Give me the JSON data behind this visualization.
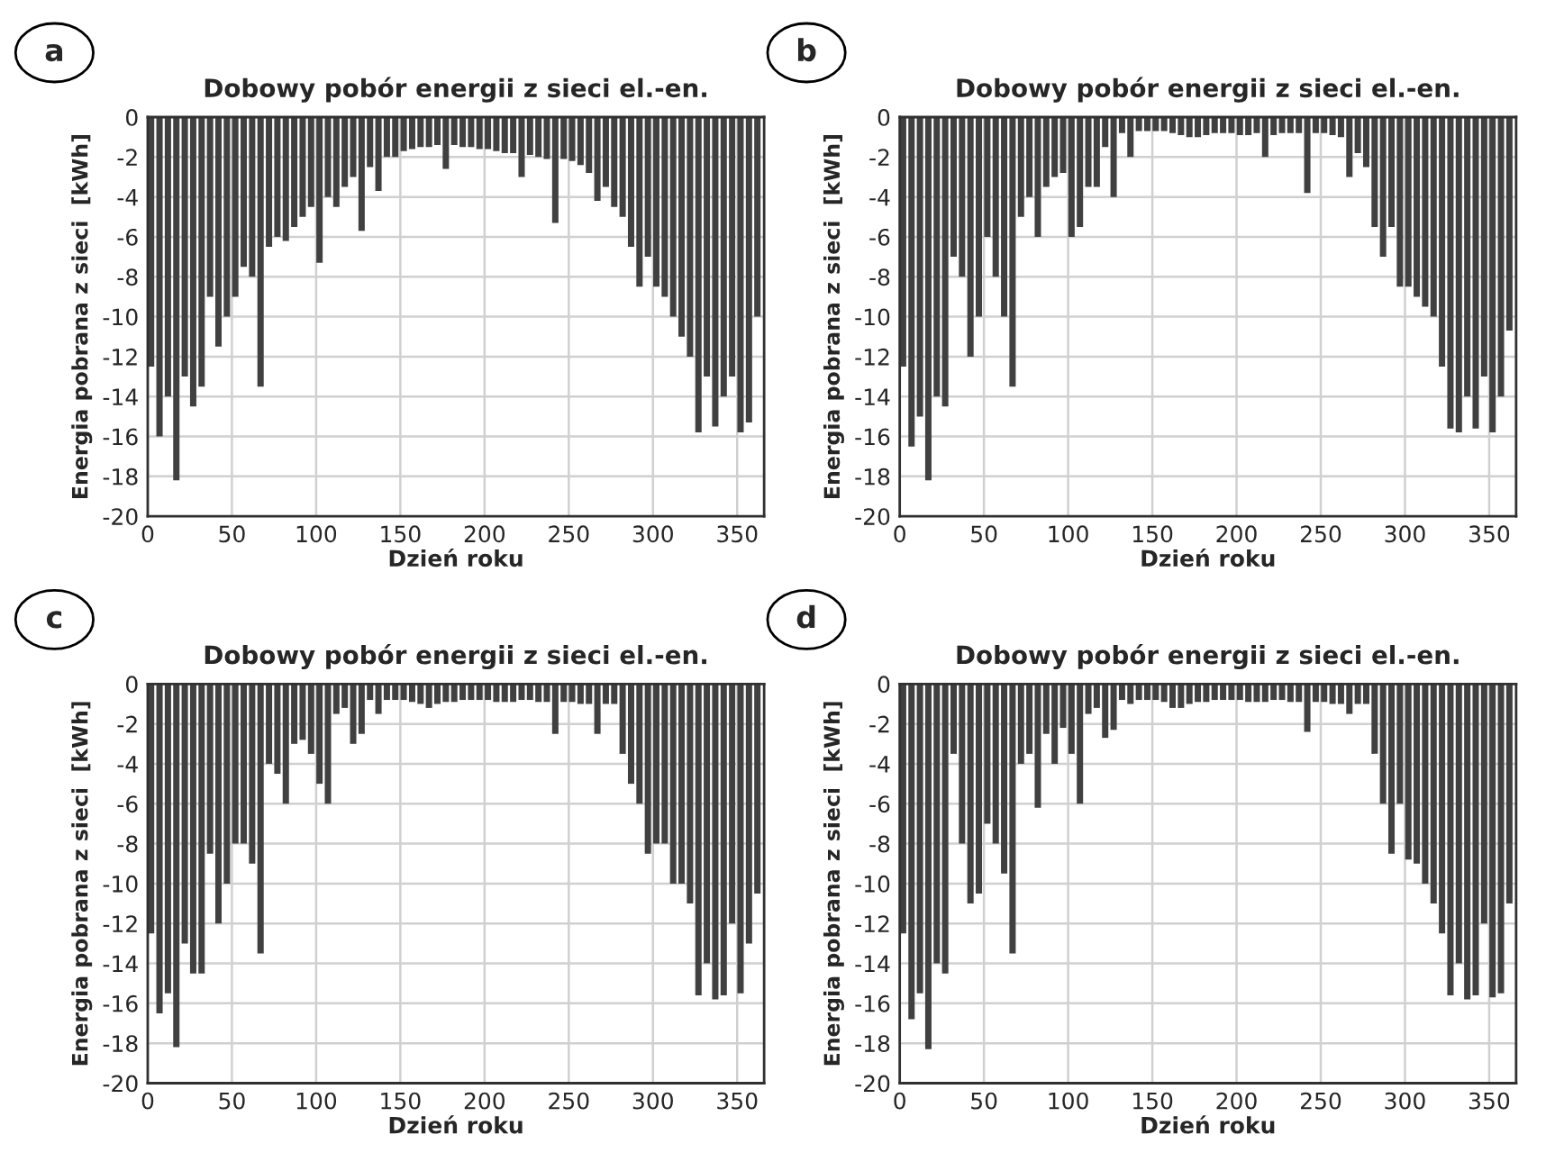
{
  "chart_data": [
    {
      "type": "bar",
      "title": "Dobowy pobór energii z sieci el.-en.",
      "xlabel": "Dzień roku",
      "ylabel": "Energia pobrana z sieci  [kWh]",
      "annotations": [
        "a"
      ],
      "x": [
        2,
        7,
        12,
        17,
        22,
        27,
        32,
        37,
        42,
        47,
        52,
        57,
        62,
        67,
        72,
        77,
        82,
        87,
        92,
        97,
        102,
        107,
        112,
        117,
        122,
        127,
        132,
        137,
        142,
        147,
        152,
        157,
        162,
        167,
        172,
        177,
        182,
        187,
        192,
        197,
        202,
        207,
        212,
        217,
        222,
        227,
        232,
        237,
        242,
        247,
        252,
        257,
        262,
        267,
        272,
        277,
        282,
        287,
        292,
        297,
        302,
        307,
        312,
        317,
        322,
        327,
        332,
        337,
        342,
        347,
        352,
        357,
        362
      ],
      "values": [
        -12.5,
        -16,
        -14,
        -18.2,
        -13,
        -14.5,
        -13.5,
        -9,
        -11.5,
        -10,
        -9,
        -7.5,
        -8,
        -13.5,
        -6.5,
        -6,
        -6.2,
        -5.5,
        -5,
        -4.5,
        -7.3,
        -4,
        -4.5,
        -3.5,
        -3,
        -5.7,
        -2.5,
        -3.7,
        -2,
        -2,
        -1.7,
        -1.6,
        -1.5,
        -1.5,
        -1.4,
        -2.6,
        -1.4,
        -1.5,
        -1.5,
        -1.6,
        -1.6,
        -1.7,
        -1.8,
        -1.8,
        -3,
        -1.9,
        -2,
        -2.1,
        -5.3,
        -2.1,
        -2.2,
        -2.4,
        -2.8,
        -4.2,
        -3.5,
        -4.5,
        -5,
        -6.5,
        -8.5,
        -7,
        -8.5,
        -9,
        -10,
        -11,
        -12,
        -15.8,
        -13,
        -15.5,
        -14,
        -13,
        -15.8,
        -15.3,
        -10
      ],
      "color": "#404040",
      "xlim": [
        0,
        366
      ],
      "xticks": [
        0,
        50,
        100,
        150,
        200,
        250,
        300,
        350
      ],
      "ylim": [
        -20,
        0
      ],
      "yticks": [
        -20,
        -18,
        -16,
        -14,
        -12,
        -10,
        -8,
        -6,
        -4,
        -2,
        0
      ],
      "grid": true
    },
    {
      "type": "bar",
      "title": "Dobowy pobór energii z sieci el.-en.",
      "xlabel": "Dzień roku",
      "ylabel": "Energia pobrana z sieci  [kWh]",
      "annotations": [
        "b"
      ],
      "x": [
        2,
        7,
        12,
        17,
        22,
        27,
        32,
        37,
        42,
        47,
        52,
        57,
        62,
        67,
        72,
        77,
        82,
        87,
        92,
        97,
        102,
        107,
        112,
        117,
        122,
        127,
        132,
        137,
        142,
        147,
        152,
        157,
        162,
        167,
        172,
        177,
        182,
        187,
        192,
        197,
        202,
        207,
        212,
        217,
        222,
        227,
        232,
        237,
        242,
        247,
        252,
        257,
        262,
        267,
        272,
        277,
        282,
        287,
        292,
        297,
        302,
        307,
        312,
        317,
        322,
        327,
        332,
        337,
        342,
        347,
        352,
        357,
        362
      ],
      "values": [
        -12.5,
        -16.5,
        -15,
        -18.2,
        -14,
        -14.5,
        -7,
        -8,
        -12,
        -10,
        -6,
        -8,
        -10,
        -13.5,
        -5,
        -4,
        -6,
        -3.5,
        -3,
        -2.8,
        -6,
        -5.5,
        -3.5,
        -3.5,
        -1.5,
        -4,
        -0.8,
        -2,
        -0.7,
        -0.7,
        -0.7,
        -0.7,
        -0.8,
        -0.9,
        -1,
        -1,
        -0.9,
        -0.8,
        -0.8,
        -0.8,
        -0.9,
        -0.9,
        -0.8,
        -2,
        -0.9,
        -0.8,
        -0.8,
        -0.8,
        -3.8,
        -0.8,
        -0.8,
        -0.9,
        -1,
        -3,
        -1.8,
        -2.5,
        -5.5,
        -7,
        -5.5,
        -8.5,
        -8.5,
        -9,
        -9.5,
        -10,
        -12.5,
        -15.6,
        -15.8,
        -14,
        -15.6,
        -13,
        -15.8,
        -14,
        -10.7
      ],
      "color": "#404040",
      "xlim": [
        0,
        366
      ],
      "xticks": [
        0,
        50,
        100,
        150,
        200,
        250,
        300,
        350
      ],
      "ylim": [
        -20,
        0
      ],
      "yticks": [
        -20,
        -18,
        -16,
        -14,
        -12,
        -10,
        -8,
        -6,
        -4,
        -2,
        0
      ],
      "grid": true
    },
    {
      "type": "bar",
      "title": "Dobowy pobór energii z sieci el.-en.",
      "xlabel": "Dzień roku",
      "ylabel": "Energia pobrana z sieci  [kWh]",
      "annotations": [
        "c"
      ],
      "x": [
        2,
        7,
        12,
        17,
        22,
        27,
        32,
        37,
        42,
        47,
        52,
        57,
        62,
        67,
        72,
        77,
        82,
        87,
        92,
        97,
        102,
        107,
        112,
        117,
        122,
        127,
        132,
        137,
        142,
        147,
        152,
        157,
        162,
        167,
        172,
        177,
        182,
        187,
        192,
        197,
        202,
        207,
        212,
        217,
        222,
        227,
        232,
        237,
        242,
        247,
        252,
        257,
        262,
        267,
        272,
        277,
        282,
        287,
        292,
        297,
        302,
        307,
        312,
        317,
        322,
        327,
        332,
        337,
        342,
        347,
        352,
        357,
        362
      ],
      "values": [
        -12.5,
        -16.5,
        -15.5,
        -18.2,
        -13,
        -14.5,
        -14.5,
        -8.5,
        -12,
        -10,
        -8,
        -8,
        -9,
        -13.5,
        -4,
        -4.5,
        -6,
        -3,
        -2.8,
        -3.5,
        -5,
        -6,
        -1.5,
        -1.2,
        -3,
        -2.5,
        -0.8,
        -1.5,
        -0.8,
        -0.8,
        -0.8,
        -0.9,
        -1,
        -1.2,
        -1,
        -0.9,
        -0.9,
        -0.8,
        -0.8,
        -0.8,
        -0.8,
        -0.9,
        -0.9,
        -0.9,
        -0.8,
        -0.8,
        -0.9,
        -0.9,
        -2.5,
        -0.9,
        -0.9,
        -1,
        -1,
        -2.5,
        -1,
        -1,
        -3.5,
        -5,
        -6,
        -8.5,
        -8,
        -8,
        -10,
        -10,
        -11,
        -15.6,
        -14,
        -15.8,
        -15.6,
        -12,
        -15.5,
        -13,
        -10.5
      ],
      "color": "#404040",
      "xlim": [
        0,
        366
      ],
      "xticks": [
        0,
        50,
        100,
        150,
        200,
        250,
        300,
        350
      ],
      "ylim": [
        -20,
        0
      ],
      "yticks": [
        -20,
        -18,
        -16,
        -14,
        -12,
        -10,
        -8,
        -6,
        -4,
        -2,
        0
      ],
      "grid": true
    },
    {
      "type": "bar",
      "title": "Dobowy pobór energii z sieci el.-en.",
      "xlabel": "Dzień roku",
      "ylabel": "Energia pobrana z sieci  [kWh]",
      "annotations": [
        "d"
      ],
      "x": [
        2,
        7,
        12,
        17,
        22,
        27,
        32,
        37,
        42,
        47,
        52,
        57,
        62,
        67,
        72,
        77,
        82,
        87,
        92,
        97,
        102,
        107,
        112,
        117,
        122,
        127,
        132,
        137,
        142,
        147,
        152,
        157,
        162,
        167,
        172,
        177,
        182,
        187,
        192,
        197,
        202,
        207,
        212,
        217,
        222,
        227,
        232,
        237,
        242,
        247,
        252,
        257,
        262,
        267,
        272,
        277,
        282,
        287,
        292,
        297,
        302,
        307,
        312,
        317,
        322,
        327,
        332,
        337,
        342,
        347,
        352,
        357,
        362
      ],
      "values": [
        -12.5,
        -16.8,
        -15.5,
        -18.3,
        -14,
        -14.5,
        -3.5,
        -8,
        -11,
        -10.5,
        -7,
        -8,
        -9.5,
        -13.5,
        -4,
        -3.5,
        -6.2,
        -2.5,
        -4,
        -2.2,
        -3.5,
        -6,
        -1.5,
        -1.2,
        -2.7,
        -2.3,
        -0.8,
        -1,
        -0.8,
        -0.8,
        -0.8,
        -0.9,
        -1.2,
        -1.2,
        -1,
        -0.9,
        -0.9,
        -0.8,
        -0.8,
        -0.8,
        -0.8,
        -0.9,
        -0.9,
        -0.9,
        -0.8,
        -0.8,
        -0.9,
        -0.9,
        -2.4,
        -0.9,
        -0.9,
        -1,
        -1,
        -1.5,
        -1,
        -1,
        -3.5,
        -6,
        -8.5,
        -6,
        -8.8,
        -9,
        -10,
        -11,
        -12.5,
        -15.6,
        -14,
        -15.8,
        -15.6,
        -12,
        -15.7,
        -15.5,
        -11
      ],
      "color": "#404040",
      "xlim": [
        0,
        366
      ],
      "xticks": [
        0,
        50,
        100,
        150,
        200,
        250,
        300,
        350
      ],
      "ylim": [
        -20,
        0
      ],
      "yticks": [
        -20,
        -18,
        -16,
        -14,
        -12,
        -10,
        -8,
        -6,
        -4,
        -2,
        0
      ],
      "grid": true
    }
  ]
}
